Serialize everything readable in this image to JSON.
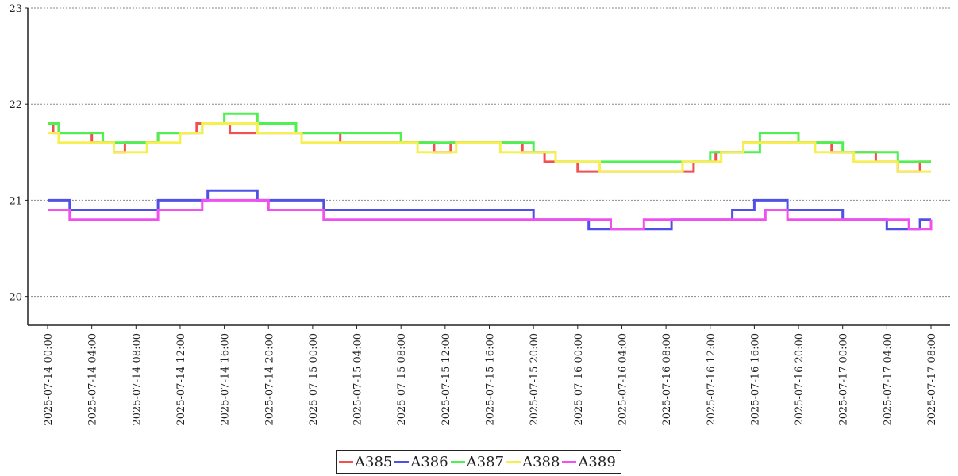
{
  "chart_data": {
    "type": "line",
    "title": "",
    "xlabel": "",
    "ylabel": "",
    "x_range": [
      "2025-07-14 00:00",
      "2025-07-17 08:00"
    ],
    "ylim": [
      19.7,
      23
    ],
    "y_ticks": [
      20,
      21,
      22,
      23
    ],
    "x_ticks": [
      "2025-07-14 00:00",
      "2025-07-14 04:00",
      "2025-07-14 08:00",
      "2025-07-14 12:00",
      "2025-07-14 16:00",
      "2025-07-14 20:00",
      "2025-07-15 00:00",
      "2025-07-15 04:00",
      "2025-07-15 08:00",
      "2025-07-15 12:00",
      "2025-07-15 16:00",
      "2025-07-15 20:00",
      "2025-07-16 00:00",
      "2025-07-16 04:00",
      "2025-07-16 08:00",
      "2025-07-16 12:00",
      "2025-07-16 16:00",
      "2025-07-16 20:00",
      "2025-07-17 00:00",
      "2025-07-17 04:00",
      "2025-07-17 08:00"
    ],
    "grid": "horizontal-dotted",
    "legend": "bottom-center",
    "series": [
      {
        "name": "A385",
        "color": "#f05050",
        "points": [
          [
            "2025-07-14 00:00",
            21.8
          ],
          [
            "2025-07-14 00:30",
            21.7
          ],
          [
            "2025-07-14 04:00",
            21.6
          ],
          [
            "2025-07-14 06:00",
            21.5
          ],
          [
            "2025-07-14 07:00",
            21.6
          ],
          [
            "2025-07-14 10:00",
            21.7
          ],
          [
            "2025-07-14 13:30",
            21.8
          ],
          [
            "2025-07-14 16:30",
            21.7
          ],
          [
            "2025-07-14 20:00",
            21.7
          ],
          [
            "2025-07-14 22:00",
            21.7
          ],
          [
            "2025-07-15 02:30",
            21.6
          ],
          [
            "2025-07-15 11:00",
            21.5
          ],
          [
            "2025-07-15 12:30",
            21.6
          ],
          [
            "2025-07-15 19:00",
            21.5
          ],
          [
            "2025-07-15 21:00",
            21.4
          ],
          [
            "2025-07-16 00:00",
            21.3
          ],
          [
            "2025-07-16 08:00",
            21.3
          ],
          [
            "2025-07-16 10:30",
            21.4
          ],
          [
            "2025-07-16 12:30",
            21.5
          ],
          [
            "2025-07-16 15:00",
            21.6
          ],
          [
            "2025-07-16 23:00",
            21.5
          ],
          [
            "2025-07-17 03:00",
            21.4
          ],
          [
            "2025-07-17 05:00",
            21.3
          ],
          [
            "2025-07-17 07:00",
            21.4
          ],
          [
            "2025-07-17 08:00",
            21.4
          ]
        ]
      },
      {
        "name": "A386",
        "color": "#5050e6",
        "points": [
          [
            "2025-07-14 00:00",
            21.0
          ],
          [
            "2025-07-14 02:00",
            20.9
          ],
          [
            "2025-07-14 10:00",
            21.0
          ],
          [
            "2025-07-14 14:30",
            21.1
          ],
          [
            "2025-07-14 19:00",
            21.0
          ],
          [
            "2025-07-15 01:00",
            20.9
          ],
          [
            "2025-07-15 20:00",
            20.8
          ],
          [
            "2025-07-16 01:00",
            20.7
          ],
          [
            "2025-07-16 08:30",
            20.8
          ],
          [
            "2025-07-16 14:00",
            20.9
          ],
          [
            "2025-07-16 16:00",
            21.0
          ],
          [
            "2025-07-16 19:00",
            20.9
          ],
          [
            "2025-07-17 00:00",
            20.8
          ],
          [
            "2025-07-17 04:00",
            20.7
          ],
          [
            "2025-07-17 07:00",
            20.8
          ],
          [
            "2025-07-17 08:00",
            20.8
          ]
        ]
      },
      {
        "name": "A387",
        "color": "#50f050",
        "points": [
          [
            "2025-07-14 00:00",
            21.8
          ],
          [
            "2025-07-14 01:00",
            21.7
          ],
          [
            "2025-07-14 05:00",
            21.6
          ],
          [
            "2025-07-14 10:00",
            21.7
          ],
          [
            "2025-07-14 14:00",
            21.8
          ],
          [
            "2025-07-14 16:00",
            21.9
          ],
          [
            "2025-07-14 19:00",
            21.8
          ],
          [
            "2025-07-14 21:00",
            21.8
          ],
          [
            "2025-07-14 22:30",
            21.7
          ],
          [
            "2025-07-15 03:00",
            21.7
          ],
          [
            "2025-07-15 08:00",
            21.6
          ],
          [
            "2025-07-15 17:30",
            21.6
          ],
          [
            "2025-07-15 20:00",
            21.5
          ],
          [
            "2025-07-15 22:00",
            21.4
          ],
          [
            "2025-07-16 09:00",
            21.4
          ],
          [
            "2025-07-16 12:00",
            21.5
          ],
          [
            "2025-07-16 16:30",
            21.7
          ],
          [
            "2025-07-16 20:00",
            21.6
          ],
          [
            "2025-07-17 00:00",
            21.5
          ],
          [
            "2025-07-17 05:00",
            21.4
          ],
          [
            "2025-07-17 08:00",
            21.4
          ]
        ]
      },
      {
        "name": "A388",
        "color": "#f5f050",
        "points": [
          [
            "2025-07-14 00:00",
            21.7
          ],
          [
            "2025-07-14 01:00",
            21.6
          ],
          [
            "2025-07-14 06:00",
            21.5
          ],
          [
            "2025-07-14 09:00",
            21.6
          ],
          [
            "2025-07-14 12:00",
            21.7
          ],
          [
            "2025-07-14 14:00",
            21.8
          ],
          [
            "2025-07-14 19:00",
            21.7
          ],
          [
            "2025-07-14 23:00",
            21.6
          ],
          [
            "2025-07-15 09:30",
            21.5
          ],
          [
            "2025-07-15 13:00",
            21.6
          ],
          [
            "2025-07-15 17:00",
            21.5
          ],
          [
            "2025-07-15 22:00",
            21.4
          ],
          [
            "2025-07-16 02:00",
            21.3
          ],
          [
            "2025-07-16 09:30",
            21.4
          ],
          [
            "2025-07-16 13:00",
            21.5
          ],
          [
            "2025-07-16 15:00",
            21.6
          ],
          [
            "2025-07-16 21:30",
            21.5
          ],
          [
            "2025-07-17 01:00",
            21.4
          ],
          [
            "2025-07-17 05:00",
            21.3
          ],
          [
            "2025-07-17 08:00",
            21.3
          ]
        ]
      },
      {
        "name": "A389",
        "color": "#f050f0",
        "points": [
          [
            "2025-07-14 00:00",
            20.9
          ],
          [
            "2025-07-14 02:00",
            20.8
          ],
          [
            "2025-07-14 10:00",
            20.9
          ],
          [
            "2025-07-14 14:00",
            21.0
          ],
          [
            "2025-07-14 20:00",
            20.9
          ],
          [
            "2025-07-15 01:00",
            20.8
          ],
          [
            "2025-07-15 20:00",
            20.8
          ],
          [
            "2025-07-16 03:00",
            20.7
          ],
          [
            "2025-07-16 06:00",
            20.8
          ],
          [
            "2025-07-16 14:30",
            20.8
          ],
          [
            "2025-07-16 17:00",
            20.9
          ],
          [
            "2025-07-16 19:00",
            20.8
          ],
          [
            "2025-07-17 03:00",
            20.8
          ],
          [
            "2025-07-17 06:00",
            20.7
          ],
          [
            "2025-07-17 08:00",
            20.8
          ]
        ]
      }
    ]
  }
}
